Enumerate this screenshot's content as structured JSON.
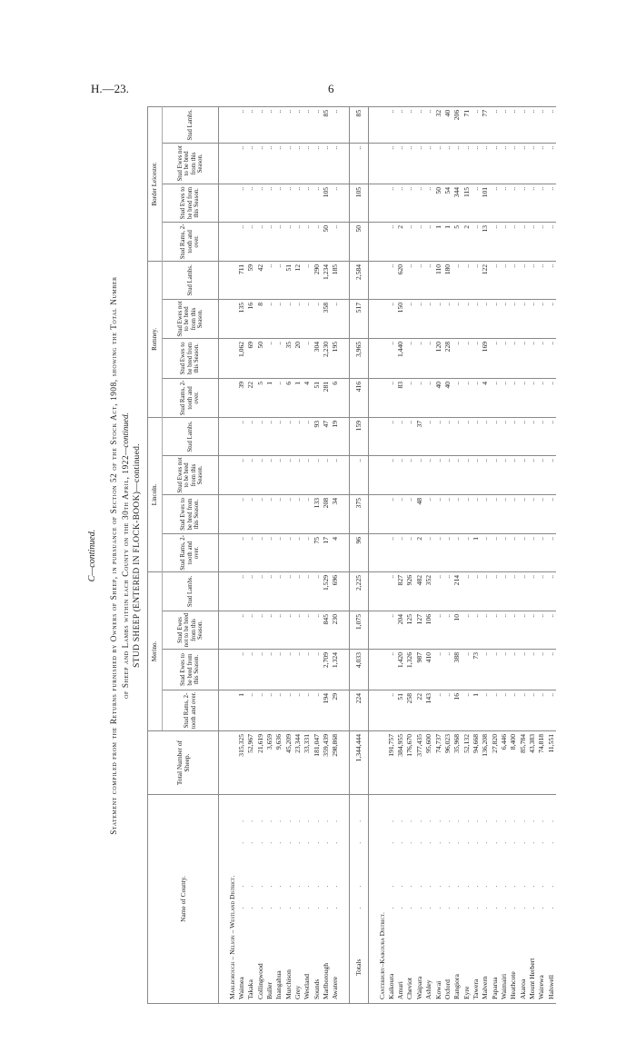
{
  "header": {
    "code": "H.—23.",
    "page": "6"
  },
  "title": {
    "continued": "C—continued.",
    "line1": "Statement compiled from the Returns furnished by Owners of Sheep, in pursuance of Section 52 of the Stock Act, 1908, showing the Total Number",
    "line2": "of Sheep and Lambs within each County on the 30th April, 1922",
    "line2_suffix": "—continued.",
    "subtitle": "STUD SHEEP (ENTERED IN FLOCK-BOOK)—continued."
  },
  "columns": {
    "name": "Name of County.",
    "total": "Total Number of Sheep.",
    "breeds": [
      "Merino.",
      "Lincoln.",
      "Romney.",
      "Border Leicester."
    ],
    "sub": [
      "Stud Rams, 2-tooth and over.",
      "Stud Ewes to be bred from this Season.",
      "Stud Ewes not to be bred from this Season.",
      "Stud Lambs."
    ]
  },
  "sections": [
    {
      "district": "Marlborough – Nelson – Westland District.",
      "rows": [
        {
          "county": "Waimea",
          "total": "315,325",
          "values": [
            "1",
            "..",
            "..",
            "..",
            "..",
            "..",
            "..",
            "..",
            "39",
            "1,062",
            "135",
            "711",
            "..",
            "..",
            "..",
            ".."
          ]
        },
        {
          "county": "Takaka",
          "total": "52,967",
          "values": [
            "..",
            "..",
            "..",
            "..",
            "..",
            "..",
            "..",
            "..",
            "22",
            "69",
            "16",
            "59",
            "..",
            "..",
            "..",
            ".."
          ]
        },
        {
          "county": "Collingwood",
          "total": "21,619",
          "values": [
            "..",
            "..",
            "..",
            "..",
            "..",
            "..",
            "..",
            "..",
            "5",
            "50",
            "8",
            "42",
            "..",
            "..",
            "..",
            ".."
          ]
        },
        {
          "county": "Buller",
          "total": "3,659",
          "values": [
            "..",
            "..",
            "..",
            "..",
            "..",
            "..",
            "..",
            "..",
            "1",
            "..",
            "..",
            "..",
            "..",
            "..",
            "..",
            ".."
          ]
        },
        {
          "county": "Inangahua",
          "total": "9,636",
          "values": [
            "..",
            "..",
            "..",
            "..",
            "..",
            "..",
            "..",
            "..",
            "..",
            "..",
            "..",
            "..",
            "..",
            "..",
            "..",
            ".."
          ]
        },
        {
          "county": "Murchison",
          "total": "45,209",
          "values": [
            "..",
            "..",
            "..",
            "..",
            "..",
            "..",
            "..",
            "..",
            "6",
            "35",
            "..",
            "51",
            "..",
            "..",
            "..",
            ".."
          ]
        },
        {
          "county": "Grey",
          "total": "23,344",
          "values": [
            "..",
            "..",
            "..",
            "..",
            "..",
            "..",
            "..",
            "..",
            "1",
            "20",
            "..",
            "12",
            "..",
            "..",
            "..",
            ".."
          ]
        },
        {
          "county": "Westland",
          "total": "33,331",
          "values": [
            "..",
            "..",
            "..",
            "..",
            "..",
            "..",
            "..",
            "..",
            "4",
            "..",
            "..",
            "..",
            "..",
            "..",
            "..",
            ".."
          ]
        },
        {
          "county": "Sounds",
          "total": "181,047",
          "values": [
            "..",
            "..",
            "..",
            "..",
            "75",
            "133",
            "..",
            "93",
            "51",
            "304",
            "..",
            "290",
            "..",
            "..",
            "..",
            ".."
          ]
        },
        {
          "county": "Marlborough",
          "total": "359,439",
          "values": [
            "194",
            "2,709",
            "845",
            "1,529",
            "17",
            "208",
            "..",
            "47",
            "281",
            "2,230",
            "358",
            "1,234",
            "50",
            "105",
            "..",
            "85"
          ]
        },
        {
          "county": "Awatere",
          "total": "298,868",
          "values": [
            "29",
            "1,324",
            "230",
            "696",
            "4",
            "34",
            "..",
            "19",
            "6",
            "195",
            "..",
            "185",
            "..",
            "..",
            "..",
            ".."
          ]
        }
      ],
      "totals": {
        "label": "Totals",
        "total": "1,344,444",
        "values": [
          "224",
          "4,033",
          "1,075",
          "2,225",
          "96",
          "375",
          "..",
          "159",
          "416",
          "3,965",
          "517",
          "2,584",
          "50",
          "105",
          "..",
          "85"
        ]
      }
    },
    {
      "district": "Canterbury–Kaikoura District.",
      "rows": [
        {
          "county": "Kaikoura",
          "total": "191,757",
          "values": [
            "..",
            "..",
            "..",
            "..",
            "..",
            "..",
            "..",
            "..",
            "..",
            "..",
            "..",
            "..",
            "..",
            "..",
            "..",
            ".."
          ]
        },
        {
          "county": "Amuri",
          "total": "384,955",
          "values": [
            "51",
            "1,420",
            "204",
            "827",
            "..",
            "..",
            "..",
            "..",
            "83",
            "1,440",
            "150",
            "620",
            "2",
            "..",
            "..",
            ".."
          ]
        },
        {
          "county": "Cheviot",
          "total": "176,670",
          "values": [
            "258",
            "1,326",
            "125",
            "926",
            "..",
            "..",
            "..",
            "..",
            "..",
            "..",
            "..",
            "..",
            "..",
            "..",
            "..",
            ".."
          ]
        },
        {
          "county": "Waipara",
          "total": "377,435",
          "values": [
            "22",
            "987",
            "127",
            "482",
            "2",
            "48",
            "..",
            "37",
            "..",
            "..",
            "..",
            "..",
            "..",
            "..",
            "..",
            ".."
          ]
        },
        {
          "county": "Ashley",
          "total": "95,600",
          "values": [
            "143",
            "410",
            "106",
            "352",
            "..",
            "..",
            "..",
            "..",
            "..",
            "..",
            "..",
            "..",
            "..",
            "..",
            "..",
            ".."
          ]
        },
        {
          "county": "Kowai",
          "total": "74,737",
          "values": [
            "..",
            "..",
            "..",
            "..",
            "..",
            "..",
            "..",
            "..",
            "40",
            "120",
            "..",
            "110",
            "1",
            "50",
            "..",
            "32"
          ]
        },
        {
          "county": "Oxford",
          "total": "96,023",
          "values": [
            "..",
            "..",
            "..",
            "..",
            "..",
            "..",
            "..",
            "..",
            "40",
            "228",
            "..",
            "180",
            "1",
            "54",
            "..",
            "40"
          ]
        },
        {
          "county": "Rangiora",
          "total": "35,968",
          "values": [
            "16",
            "388",
            "10",
            "214",
            "..",
            "..",
            "..",
            "..",
            "..",
            "..",
            "..",
            "..",
            "5",
            "344",
            "..",
            "206"
          ]
        },
        {
          "county": "Eyre",
          "total": "52,132",
          "values": [
            "..",
            "..",
            "..",
            "..",
            "..",
            "..",
            "..",
            "..",
            "..",
            "..",
            "..",
            "..",
            "2",
            "115",
            "..",
            "71"
          ]
        },
        {
          "county": "Tawera",
          "total": "94,668",
          "values": [
            "1",
            "73",
            "..",
            "..",
            "1",
            "..",
            "..",
            "..",
            "..",
            "..",
            "..",
            "..",
            "..",
            "..",
            "..",
            ".."
          ]
        },
        {
          "county": "Malvern",
          "total": "136,208",
          "values": [
            "..",
            "..",
            "..",
            "..",
            "..",
            "..",
            "..",
            "..",
            "4",
            "169",
            "..",
            "122",
            "13",
            "101",
            "..",
            "77"
          ]
        },
        {
          "county": "Paparua",
          "total": "27,820",
          "values": [
            "..",
            "..",
            "..",
            "..",
            "..",
            "..",
            "..",
            "..",
            "..",
            "..",
            "..",
            "..",
            "..",
            "..",
            "..",
            ".."
          ]
        },
        {
          "county": "Waimairi",
          "total": "6,446",
          "values": [
            "..",
            "..",
            "..",
            "..",
            "..",
            "..",
            "..",
            "..",
            "..",
            "..",
            "..",
            "..",
            "..",
            "..",
            "..",
            ".."
          ]
        },
        {
          "county": "Heathcote",
          "total": "8,400",
          "values": [
            "..",
            "..",
            "..",
            "..",
            "..",
            "..",
            "..",
            "..",
            "..",
            "..",
            "..",
            "..",
            "..",
            "..",
            "..",
            ".."
          ]
        },
        {
          "county": "Akaroa",
          "total": "85,784",
          "values": [
            "..",
            "..",
            "..",
            "..",
            "..",
            "..",
            "..",
            "..",
            "..",
            "..",
            "..",
            "..",
            "..",
            "..",
            "..",
            ".."
          ]
        },
        {
          "county": "Mount Herbert",
          "total": "43,383",
          "values": [
            "..",
            "..",
            "..",
            "..",
            "..",
            "..",
            "..",
            "..",
            "..",
            "..",
            "..",
            "..",
            "..",
            "..",
            "..",
            ".."
          ]
        },
        {
          "county": "Wairewa",
          "total": "74,818",
          "values": [
            "..",
            "..",
            "..",
            "..",
            "..",
            "..",
            "..",
            "..",
            "..",
            "..",
            "..",
            "..",
            "..",
            "..",
            "..",
            ".."
          ]
        },
        {
          "county": "Halswell",
          "total": "11,551",
          "values": [
            "..",
            "..",
            "..",
            "..",
            "..",
            "..",
            "..",
            "..",
            "..",
            "..",
            "..",
            "..",
            "..",
            "..",
            "..",
            ".."
          ]
        }
      ]
    }
  ]
}
